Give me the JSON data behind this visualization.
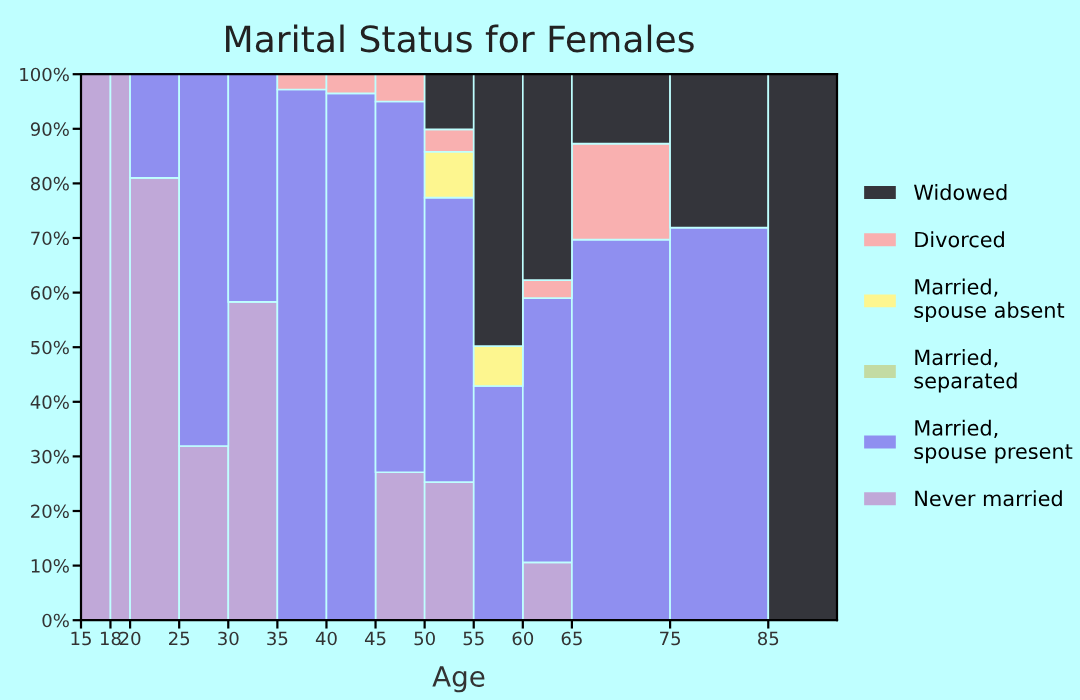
{
  "chart_data": {
    "type": "bar",
    "stacked": true,
    "title": "Marital Status for Females",
    "xlabel": "Age",
    "x": [
      16.5,
      19,
      22.5,
      27.5,
      32.5,
      37.5,
      42.5,
      47.5,
      52.5,
      57.5,
      62.5,
      70,
      80,
      88.5
    ],
    "xlim": [
      15,
      92
    ],
    "xticks": [
      15,
      18,
      20,
      25,
      30,
      35,
      40,
      45,
      50,
      55,
      60,
      65,
      75,
      85
    ],
    "ylim": [
      0,
      100
    ],
    "yticks": [
      {
        "value": 0,
        "label": "0%"
      },
      {
        "value": 10,
        "label": "10%"
      },
      {
        "value": 20,
        "label": "20%"
      },
      {
        "value": 30,
        "label": "30%"
      },
      {
        "value": 40,
        "label": "40%"
      },
      {
        "value": 50,
        "label": "50%"
      },
      {
        "value": 60,
        "label": "60%"
      },
      {
        "value": 70,
        "label": "70%"
      },
      {
        "value": 80,
        "label": "80%"
      },
      {
        "value": 90,
        "label": "90%"
      },
      {
        "value": 100,
        "label": "100%"
      }
    ],
    "series": [
      {
        "name": "Never married",
        "color": "#c0a8d8",
        "values": [
          100,
          100,
          81.0,
          31.9,
          58.3,
          0,
          0,
          27.1,
          25.3,
          0,
          10.6,
          0,
          0,
          0
        ]
      },
      {
        "name": "Married,\nspouse present",
        "color": "#8f8ff0",
        "values": [
          0,
          0,
          19.0,
          68.1,
          41.7,
          97.2,
          96.5,
          67.9,
          52.1,
          42.9,
          48.4,
          69.7,
          71.9,
          0
        ]
      },
      {
        "name": "Married,\nseparated",
        "color": "#c3dba3",
        "values": [
          0,
          0,
          0,
          0,
          0,
          0,
          0,
          0,
          0,
          0,
          0,
          0,
          0,
          0
        ]
      },
      {
        "name": "Married,\nspouse absent",
        "color": "#fdf68f",
        "values": [
          0,
          0,
          0,
          0,
          0,
          0,
          0,
          0,
          8.4,
          7.3,
          0,
          0,
          0,
          0
        ]
      },
      {
        "name": "Divorced",
        "color": "#f9b0b0",
        "values": [
          0,
          0,
          0,
          0,
          0,
          2.8,
          3.5,
          5.0,
          4.1,
          0,
          3.3,
          17.6,
          0,
          0
        ]
      },
      {
        "name": "Widowed",
        "color": "#34353b",
        "values": [
          0,
          0,
          0,
          0,
          0,
          0,
          0,
          0,
          10.1,
          49.8,
          37.7,
          12.7,
          28.1,
          100
        ]
      }
    ],
    "legend": "right"
  }
}
